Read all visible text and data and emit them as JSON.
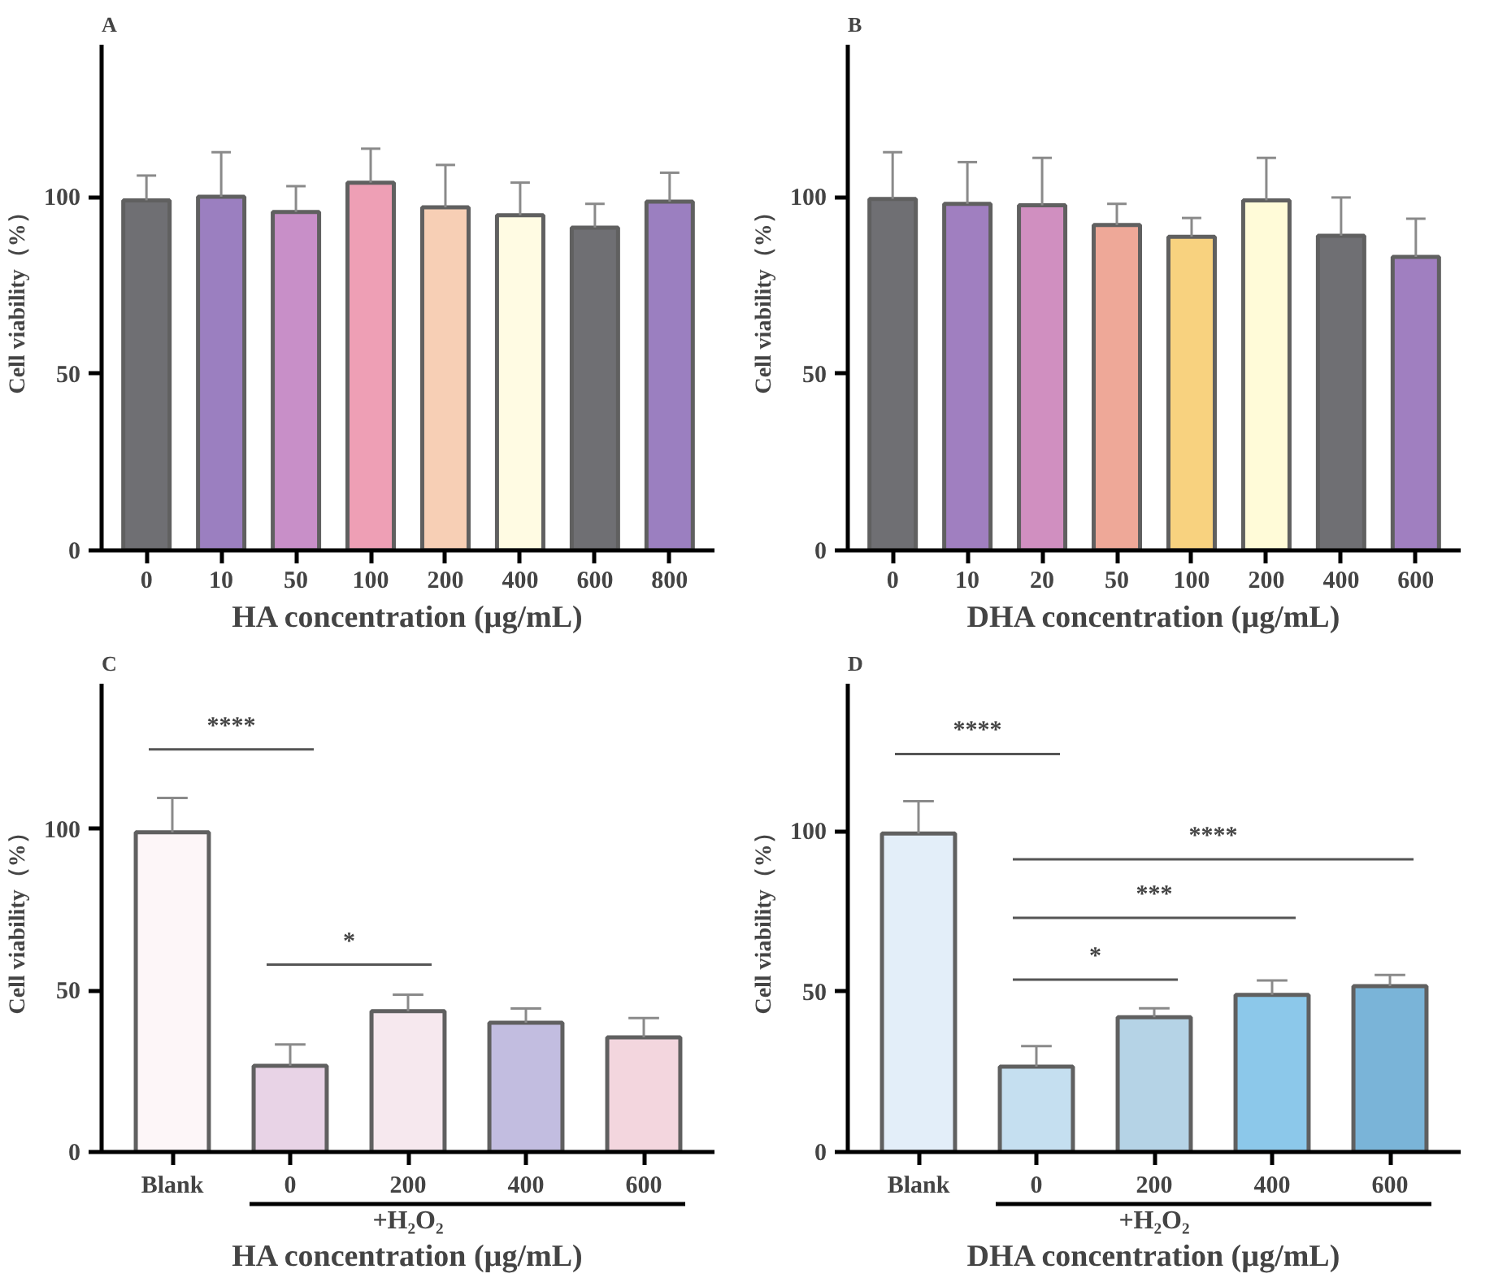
{
  "chart_data": [
    {
      "type": "bar",
      "title": "A",
      "xlabel": "HA concentration (µg/mL)",
      "ylabel": "Cell viability（%）",
      "categories": [
        "0",
        "10",
        "50",
        "100",
        "200",
        "400",
        "600",
        "800"
      ],
      "values": [
        99,
        100,
        95.7,
        104,
        97,
        94.8,
        91.3,
        98.6
      ],
      "errors": [
        [
          99,
          106
        ],
        [
          100,
          112.6
        ],
        [
          95.7,
          103
        ],
        [
          104,
          113.6
        ],
        [
          97,
          109
        ],
        [
          94.8,
          104
        ],
        [
          91.3,
          98
        ],
        [
          98.6,
          106.8
        ]
      ],
      "colors": [
        "#6f6f73",
        "#9b7fc0",
        "#c88fc8",
        "#ee9fb5",
        "#f7cfb5",
        "#fffbe3",
        "#6f6f73",
        "#9b7fc0"
      ],
      "ylim": [
        0,
        143
      ],
      "yticks": [
        0,
        50,
        100
      ],
      "grid": false
    },
    {
      "type": "bar",
      "title": "B",
      "xlabel": "DHA concentration (µg/mL)",
      "ylabel": "Cell viability（%）",
      "categories": [
        "0",
        "10",
        "20",
        "50",
        "100",
        "200",
        "400",
        "600"
      ],
      "values": [
        99.4,
        98,
        97.6,
        92,
        88.7,
        99,
        89,
        83
      ],
      "errors": [
        [
          99.4,
          112.6
        ],
        [
          98,
          109.8
        ],
        [
          97.6,
          111
        ],
        [
          92,
          98
        ],
        [
          88.7,
          94
        ],
        [
          99,
          111
        ],
        [
          89,
          99.8
        ],
        [
          83,
          93.8
        ]
      ],
      "colors": [
        "#6f6f73",
        "#a07fc0",
        "#d08fc0",
        "#eea898",
        "#f8d27f",
        "#fffbd8",
        "#6f6f73",
        "#a07fc0"
      ],
      "ylim": [
        0,
        143
      ],
      "yticks": [
        0,
        50,
        100
      ],
      "grid": false
    },
    {
      "type": "bar",
      "title": "C",
      "xlabel": "HA concentration (µg/mL)",
      "ylabel": "Cell viability（%）",
      "categories": [
        "Blank",
        "0",
        "200",
        "400",
        "600"
      ],
      "values": [
        99,
        26.7,
        43.6,
        40,
        35.5
      ],
      "errors": [
        [
          99,
          109.6
        ],
        [
          26.7,
          33.3
        ],
        [
          43.6,
          48.7
        ],
        [
          40,
          44.4
        ],
        [
          35.5,
          41.5
        ]
      ],
      "colors": [
        "#fdf6f8",
        "#e8d3e6",
        "#f6e8ee",
        "#c2bde0",
        "#f3d6de"
      ],
      "annotations": [
        "****",
        "*",
        "+H₂O₂"
      ],
      "ylim": [
        0,
        145
      ],
      "yticks": [
        0,
        50,
        100
      ],
      "grid": false
    },
    {
      "type": "bar",
      "title": "D",
      "xlabel": "DHA concentration (µg/mL)",
      "ylabel": "Cell viability（%）",
      "categories": [
        "Blank",
        "0",
        "200",
        "400",
        "600"
      ],
      "values": [
        99.3,
        26.6,
        42,
        49,
        51.7
      ],
      "errors": [
        [
          99.3,
          109.4
        ],
        [
          26.6,
          33
        ],
        [
          42,
          44.8
        ],
        [
          49,
          53.5
        ],
        [
          51.7,
          55.2
        ]
      ],
      "colors": [
        "#e3eef9",
        "#c5dff0",
        "#b5d3e6",
        "#8cc8ea",
        "#7ab4d8"
      ],
      "annotations": [
        "****",
        "****",
        "***",
        "*",
        "+H₂O₂"
      ],
      "ylim": [
        0,
        146
      ],
      "yticks": [
        0,
        50,
        100
      ],
      "grid": false
    }
  ]
}
